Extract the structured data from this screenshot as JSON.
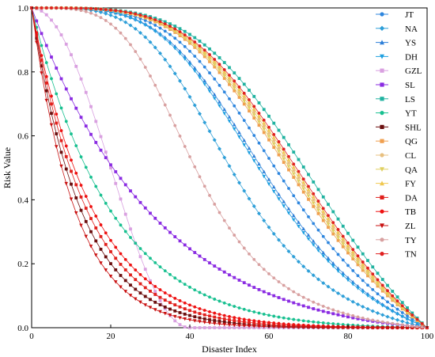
{
  "chart_data": {
    "type": "line",
    "xlabel": "Disaster Index",
    "ylabel": "Risk Value",
    "xlim": [
      0,
      100
    ],
    "ylim": [
      0,
      1
    ],
    "xticks": [
      0,
      20,
      40,
      60,
      80,
      100
    ],
    "yticks": [
      "0.0",
      "0.2",
      "0.4",
      "0.6",
      "0.8",
      "1.0"
    ],
    "grid": false,
    "legend_position": "top-right",
    "series": [
      {
        "name": "JT",
        "color": "#2e86de",
        "marker": "circle",
        "shape": [
          1,
          67
        ]
      },
      {
        "name": "NA",
        "color": "#2e9fd8",
        "marker": "diamond",
        "shape": [
          1,
          52
        ]
      },
      {
        "name": "YS",
        "color": "#2e7fd8",
        "marker": "triangle-up",
        "shape": [
          1,
          62
        ]
      },
      {
        "name": "DH",
        "color": "#1fa0e0",
        "marker": "triangle-down",
        "shape": [
          1,
          61
        ]
      },
      {
        "name": "GZL",
        "color": "#d9a0e0",
        "marker": "square",
        "shape": [
          0,
          9
        ]
      },
      {
        "name": "SL",
        "color": "#8a2be2",
        "marker": "square",
        "shape": [
          2,
          30
        ]
      },
      {
        "name": "LS",
        "color": "#20b2a0",
        "marker": "square",
        "shape": [
          1,
          80
        ]
      },
      {
        "name": "YT",
        "color": "#18c090",
        "marker": "circle",
        "shape": [
          2,
          20
        ]
      },
      {
        "name": "SHL",
        "color": "#6b0f0f",
        "marker": "square",
        "shape": [
          2,
          12.5
        ]
      },
      {
        "name": "QG",
        "color": "#f0a050",
        "marker": "square",
        "shape": [
          1,
          72
        ]
      },
      {
        "name": "CL",
        "color": "#e8c080",
        "marker": "circle",
        "shape": [
          1,
          74
        ]
      },
      {
        "name": "QA",
        "color": "#e0d060",
        "marker": "triangle-down",
        "shape": [
          1,
          73
        ]
      },
      {
        "name": "FY",
        "color": "#f0c850",
        "marker": "triangle-up",
        "shape": [
          1,
          75
        ]
      },
      {
        "name": "DA",
        "color": "#e0201c",
        "marker": "square",
        "shape": [
          2,
          14
        ]
      },
      {
        "name": "TB",
        "color": "#ee1111",
        "marker": "circle",
        "shape": [
          2,
          15.5
        ]
      },
      {
        "name": "ZL",
        "color": "#c81010",
        "marker": "triangle-down",
        "shape": [
          2,
          11
        ]
      },
      {
        "name": "TY",
        "color": "#d8a0a0",
        "marker": "circle",
        "shape": [
          1,
          42
        ]
      },
      {
        "name": "TN",
        "color": "#e02020",
        "marker": "circle",
        "shape": [
          1,
          76
        ]
      }
    ]
  }
}
